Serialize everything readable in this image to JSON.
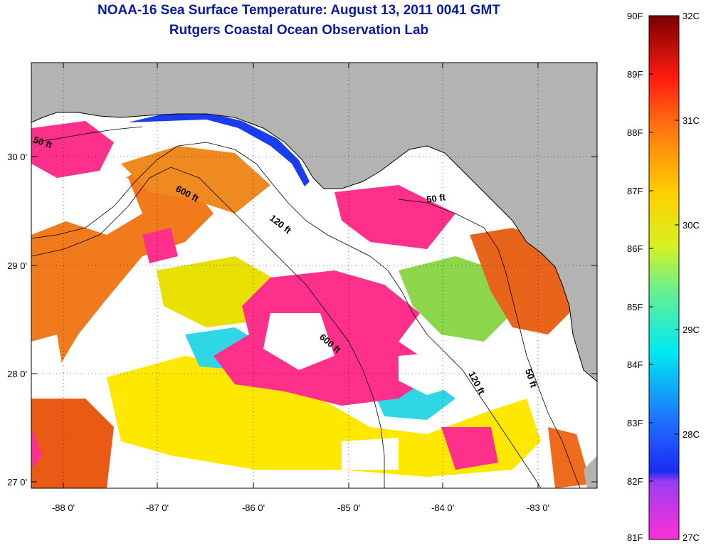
{
  "title": "NOAA-16 Sea Surface Temperature:  August 13, 2011 0041 GMT",
  "subtitle": "Rutgers Coastal Ocean Observation Lab",
  "colors": {
    "title": "#0a1aa0",
    "land": "#b3b3b3",
    "cloud": "#ffffff",
    "pink": "#ff2f8c",
    "orange": "#f07a1c",
    "yellow": "#ffe800",
    "green": "#8bd64a",
    "cyan": "#2fd7e6",
    "blue": "#1b3df0"
  },
  "axes": {
    "x_ticks": [
      "-88 0'",
      "-87 0'",
      "-86 0'",
      "-85 0'",
      "-84 0'",
      "-83 0'"
    ],
    "y_ticks": [
      "30 0'",
      "29 0'",
      "28 0'",
      "27 0'"
    ]
  },
  "isobath_labels": [
    {
      "text": "50 ft",
      "id": "iso-50-west"
    },
    {
      "text": "600 ft",
      "id": "iso-600-north"
    },
    {
      "text": "120 ft",
      "id": "iso-120-north"
    },
    {
      "text": "50 ft",
      "id": "iso-50-bigbend"
    },
    {
      "text": "600 ft",
      "id": "iso-600-center"
    },
    {
      "text": "120 ft",
      "id": "iso-120-south"
    },
    {
      "text": "50 ft",
      "id": "iso-50-south"
    }
  ],
  "colorbar": {
    "f_labels": [
      "90F",
      "89F",
      "88F",
      "87F",
      "86F",
      "85F",
      "84F",
      "83F",
      "82F",
      "81F"
    ],
    "c_labels": [
      "32C",
      "31C",
      "30C",
      "29C",
      "28C",
      "27C"
    ]
  }
}
